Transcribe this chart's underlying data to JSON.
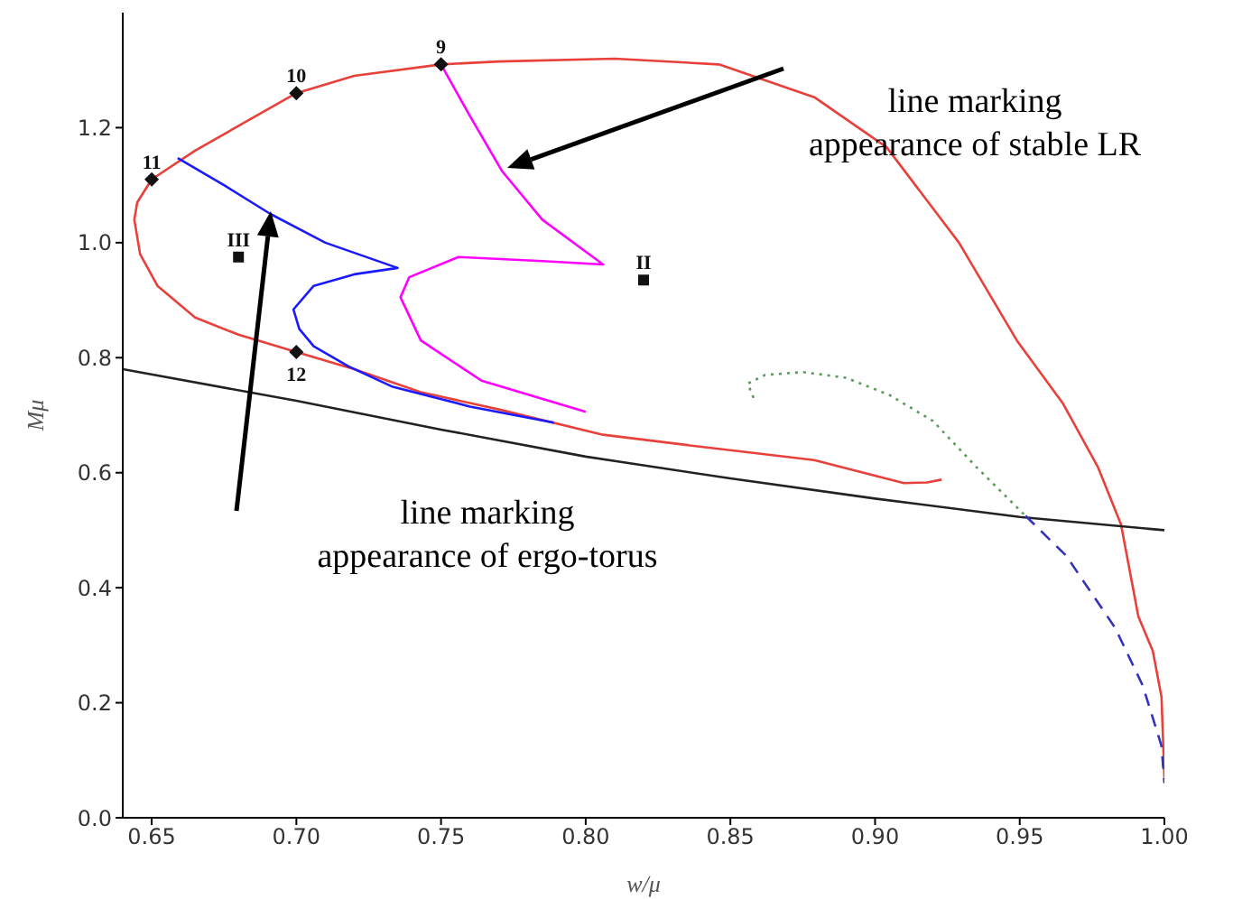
{
  "chart_data": {
    "type": "line",
    "xlabel": "w/μ",
    "ylabel": "Mμ",
    "xlim": [
      0.64,
      1.0
    ],
    "ylim": [
      0,
      1.4
    ],
    "xticks": [
      {
        "value": 0.65,
        "label": "0.65"
      },
      {
        "value": 0.7,
        "label": "0.70"
      },
      {
        "value": 0.75,
        "label": "0.75"
      },
      {
        "value": 0.8,
        "label": "0.80"
      },
      {
        "value": 0.85,
        "label": "0.85"
      },
      {
        "value": 0.9,
        "label": "0.90"
      },
      {
        "value": 0.95,
        "label": "0.95"
      },
      {
        "value": 1.0,
        "label": "1.00"
      }
    ],
    "yticks": [
      {
        "value": 0,
        "label": "0.0"
      },
      {
        "value": 0.2,
        "label": "0.2"
      },
      {
        "value": 0.4,
        "label": "0.4"
      },
      {
        "value": 0.6,
        "label": "0.6"
      },
      {
        "value": 0.8,
        "label": "0.8"
      },
      {
        "value": 1.0,
        "label": "1.0"
      },
      {
        "value": 1.2,
        "label": "1.2"
      }
    ],
    "grid": false,
    "legend": false,
    "series": [
      {
        "color": "#e8403a",
        "line_style": "solid",
        "x": [
          1.0,
          0.999,
          0.996,
          0.991,
          0.985,
          0.977,
          0.965,
          0.949,
          0.929,
          0.904,
          0.879,
          0.846,
          0.81,
          0.77,
          0.75,
          0.72,
          0.7,
          0.681,
          0.665,
          0.65,
          0.645,
          0.644,
          0.646,
          0.652,
          0.665,
          0.68,
          0.7,
          0.72,
          0.743,
          0.77,
          0.806,
          0.84,
          0.879,
          0.91,
          0.918,
          0.923
        ],
        "values": [
          0.07,
          0.21,
          0.29,
          0.35,
          0.51,
          0.61,
          0.72,
          0.83,
          1.0,
          1.166,
          1.253,
          1.31,
          1.32,
          1.315,
          1.31,
          1.29,
          1.26,
          1.206,
          1.16,
          1.11,
          1.07,
          1.04,
          0.98,
          0.925,
          0.87,
          0.84,
          0.81,
          0.78,
          0.74,
          0.71,
          0.666,
          0.645,
          0.622,
          0.582,
          0.583,
          0.588
        ]
      },
      {
        "color": "#1a1aff",
        "line_style": "solid",
        "x": [
          0.659,
          0.675,
          0.691,
          0.71,
          0.735,
          0.72,
          0.706,
          0.699,
          0.701,
          0.706,
          0.718,
          0.733,
          0.76,
          0.789
        ],
        "values": [
          1.147,
          1.1,
          1.05,
          1.0,
          0.956,
          0.945,
          0.925,
          0.884,
          0.85,
          0.82,
          0.785,
          0.75,
          0.715,
          0.687
        ]
      },
      {
        "color": "#ff00ff",
        "line_style": "solid",
        "x": [
          0.75,
          0.76,
          0.771,
          0.785,
          0.806,
          0.785,
          0.756,
          0.739,
          0.736,
          0.743,
          0.764,
          0.8
        ],
        "values": [
          1.31,
          1.22,
          1.125,
          1.04,
          0.962,
          0.968,
          0.975,
          0.94,
          0.905,
          0.83,
          0.76,
          0.706
        ]
      },
      {
        "color": "#222222",
        "line_style": "solid",
        "x": [
          0.64,
          0.7,
          0.75,
          0.8,
          0.85,
          0.9,
          0.95,
          1.0
        ],
        "values": [
          0.78,
          0.725,
          0.675,
          0.628,
          0.59,
          0.555,
          0.523,
          0.5
        ]
      },
      {
        "color": "#5a9a5a",
        "line_style": "dotted",
        "x": [
          0.858,
          0.856,
          0.862,
          0.875,
          0.89,
          0.905,
          0.92,
          0.935,
          0.952
        ],
        "values": [
          0.73,
          0.755,
          0.77,
          0.775,
          0.765,
          0.735,
          0.69,
          0.61,
          0.525
        ]
      },
      {
        "color": "#3333bb",
        "line_style": "dashed",
        "x": [
          0.952,
          0.966,
          0.983,
          0.9925,
          0.999,
          1.0
        ],
        "values": [
          0.525,
          0.456,
          0.33,
          0.23,
          0.125,
          0.06
        ]
      },
      {
        "type": "scatter",
        "marker": "diamond",
        "color": "#111111",
        "x": [
          0.75,
          0.7,
          0.65,
          0.7
        ],
        "values": [
          1.31,
          1.26,
          1.11,
          0.81
        ]
      },
      {
        "type": "scatter",
        "marker": "square",
        "color": "#111111",
        "x": [
          0.68,
          0.82
        ],
        "values": [
          0.975,
          0.935
        ]
      }
    ],
    "annotations": [
      {
        "text": "9",
        "x": 0.75,
        "y": 1.31
      },
      {
        "text": "10",
        "x": 0.7,
        "y": 1.26
      },
      {
        "text": "11",
        "x": 0.65,
        "y": 1.11
      },
      {
        "text": "12",
        "x": 0.7,
        "y": 0.81
      },
      {
        "text": "III",
        "x": 0.68,
        "y": 0.975
      },
      {
        "text": "II",
        "x": 0.82,
        "y": 0.935
      },
      "line marking\nappearance of stable LR",
      "line marking\nappearance of ergo-torus"
    ]
  }
}
